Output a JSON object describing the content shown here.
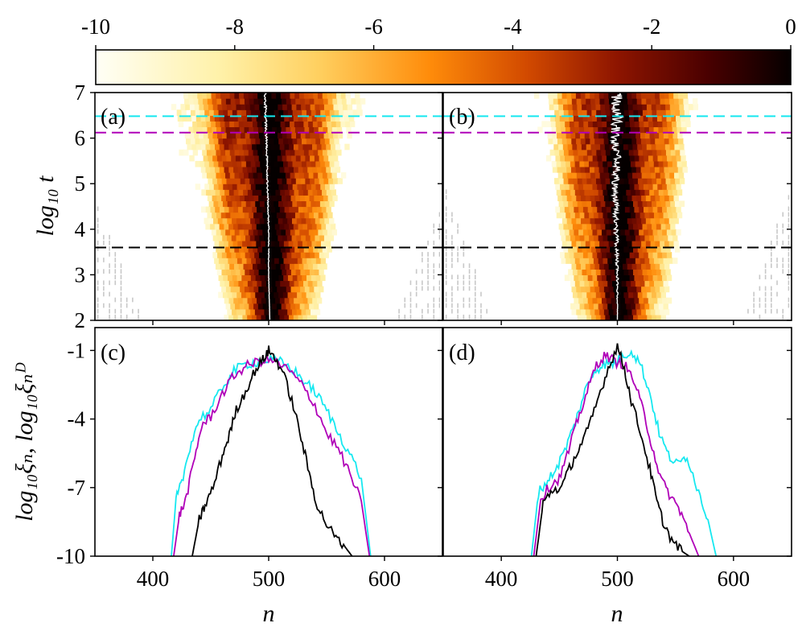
{
  "colorbar": {
    "ticks": [
      "-10",
      "-8",
      "-6",
      "-4",
      "-2",
      "0"
    ],
    "range": [
      -10,
      0
    ],
    "colormap": "afmhot_r"
  },
  "labels": {
    "ylabel_top": "log₁₀ t",
    "ylabel_bottom": "log₁₀ξₙ, log₁₀ξₙᴰ",
    "xlabel_left": "n",
    "xlabel_right": "n"
  },
  "top_y_ticks": [
    "7",
    "6",
    "5",
    "4",
    "3",
    "2"
  ],
  "bottom_y_ticks": [
    "-1",
    "-4",
    "-7",
    "-10"
  ],
  "x_ticks": [
    "400",
    "500",
    "600"
  ],
  "panels": [
    {
      "id": "a",
      "label": "(a)"
    },
    {
      "id": "b",
      "label": "(b)"
    },
    {
      "id": "c",
      "label": "(c)"
    },
    {
      "id": "d",
      "label": "(d)"
    }
  ],
  "colors": {
    "cyan": "#16e8f0",
    "magenta": "#b000b8",
    "black": "#000000",
    "gray": "#c8c8c8",
    "white": "#ffffff"
  },
  "chart_data": [
    {
      "type": "heatmap",
      "panel": "(a)",
      "xlabel": "n",
      "ylabel": "log10 t",
      "xlim": [
        350,
        650
      ],
      "ylim": [
        2,
        7
      ],
      "colorbar_range": [
        -10,
        0
      ],
      "hlines": [
        {
          "y": 6.48,
          "color": "cyan",
          "style": "dashed"
        },
        {
          "y": 6.12,
          "color": "magenta",
          "style": "dashed"
        },
        {
          "y": 3.6,
          "color": "black",
          "style": "dashed"
        }
      ],
      "spread_width_vs_logt": {
        "logt": [
          2,
          3,
          4,
          5,
          6,
          7
        ],
        "halfwidth": [
          38,
          48,
          58,
          68,
          76,
          82
        ]
      },
      "center_track": {
        "logt": [
          2,
          3,
          4,
          5,
          6,
          7
        ],
        "n": [
          501,
          500,
          500,
          499,
          498,
          497
        ]
      }
    },
    {
      "type": "heatmap",
      "panel": "(b)",
      "xlabel": "n",
      "ylabel": "log10 t",
      "xlim": [
        350,
        650
      ],
      "ylim": [
        2,
        7
      ],
      "colorbar_range": [
        -10,
        0
      ],
      "hlines": [
        {
          "y": 6.48,
          "color": "cyan",
          "style": "dashed"
        },
        {
          "y": 6.12,
          "color": "magenta",
          "style": "dashed"
        },
        {
          "y": 3.6,
          "color": "black",
          "style": "dashed"
        }
      ],
      "spread_width_vs_logt": {
        "logt": [
          2,
          3,
          4,
          5,
          6,
          7
        ],
        "halfwidth": [
          38,
          46,
          54,
          62,
          68,
          72
        ]
      },
      "center_track": {
        "logt": [
          2,
          3,
          4,
          5,
          5.5,
          6,
          6.5,
          7
        ],
        "n": [
          500,
          500,
          499,
          498,
          500,
          497,
          500,
          499
        ]
      }
    },
    {
      "type": "line",
      "panel": "(c)",
      "xlabel": "n",
      "ylabel": "log10 xi_n, log10 xi_n^D",
      "xlim": [
        350,
        650
      ],
      "ylim": [
        -10,
        0
      ],
      "series": [
        {
          "name": "cyan",
          "x": [
            416,
            420,
            425,
            432,
            440,
            450,
            460,
            470,
            480,
            490,
            500,
            510,
            520,
            530,
            540,
            550,
            560,
            570,
            580,
            588
          ],
          "y": [
            -10,
            -7.5,
            -6.8,
            -5.2,
            -4.0,
            -3.6,
            -2.6,
            -1.9,
            -1.6,
            -1.5,
            -1.4,
            -1.5,
            -1.8,
            -2.3,
            -2.8,
            -3.6,
            -4.6,
            -5.5,
            -6.6,
            -10
          ]
        },
        {
          "name": "magenta",
          "x": [
            418,
            423,
            428,
            435,
            442,
            450,
            460,
            470,
            480,
            490,
            500,
            510,
            520,
            530,
            540,
            550,
            560,
            570,
            580,
            587
          ],
          "y": [
            -10,
            -8.2,
            -7.6,
            -6.0,
            -4.3,
            -3.9,
            -2.9,
            -2.1,
            -1.7,
            -1.5,
            -1.4,
            -1.6,
            -2.0,
            -2.6,
            -3.4,
            -4.6,
            -5.3,
            -6.4,
            -7.6,
            -10
          ]
        },
        {
          "name": "black",
          "x": [
            434,
            440,
            445,
            452,
            460,
            466,
            472,
            480,
            488,
            495,
            500,
            505,
            512,
            520,
            528,
            535,
            542,
            550,
            558,
            566,
            572
          ],
          "y": [
            -10,
            -8.4,
            -7.8,
            -7.0,
            -5.6,
            -4.7,
            -3.6,
            -2.8,
            -1.9,
            -1.4,
            -1.0,
            -1.3,
            -1.9,
            -3.2,
            -4.8,
            -6.4,
            -7.8,
            -8.6,
            -9.2,
            -9.6,
            -10
          ]
        }
      ]
    },
    {
      "type": "line",
      "panel": "(d)",
      "xlabel": "n",
      "ylabel": "",
      "xlim": [
        350,
        650
      ],
      "ylim": [
        -10,
        0
      ],
      "series": [
        {
          "name": "cyan",
          "x": [
            426,
            432,
            440,
            448,
            456,
            464,
            472,
            480,
            488,
            496,
            504,
            512,
            520,
            528,
            536,
            544,
            552,
            560,
            570,
            578,
            585
          ],
          "y": [
            -10,
            -7.2,
            -6.7,
            -6.1,
            -5.2,
            -4.1,
            -2.8,
            -1.9,
            -1.6,
            -1.6,
            -1.3,
            -1.0,
            -1.6,
            -2.9,
            -4.6,
            -5.6,
            -6.0,
            -5.6,
            -7.2,
            -8.4,
            -10
          ]
        },
        {
          "name": "magenta",
          "x": [
            428,
            434,
            442,
            450,
            458,
            466,
            474,
            482,
            490,
            498,
            506,
            514,
            522,
            530,
            538,
            546,
            554,
            562,
            570
          ],
          "y": [
            -10,
            -7.5,
            -6.9,
            -6.6,
            -5.4,
            -4.0,
            -2.8,
            -1.6,
            -1.2,
            -1.5,
            -1.6,
            -2.3,
            -3.6,
            -5.2,
            -6.7,
            -7.4,
            -8.0,
            -9.0,
            -10
          ]
        },
        {
          "name": "black",
          "x": [
            430,
            436,
            444,
            452,
            460,
            468,
            476,
            484,
            492,
            500,
            506,
            512,
            520,
            528,
            534,
            540,
            548,
            556,
            562
          ],
          "y": [
            -10,
            -7.7,
            -7.1,
            -7.0,
            -6.0,
            -5.2,
            -4.3,
            -3.0,
            -1.8,
            -0.8,
            -1.8,
            -3.2,
            -4.6,
            -6.2,
            -7.6,
            -8.6,
            -9.4,
            -9.8,
            -10
          ]
        }
      ]
    }
  ]
}
